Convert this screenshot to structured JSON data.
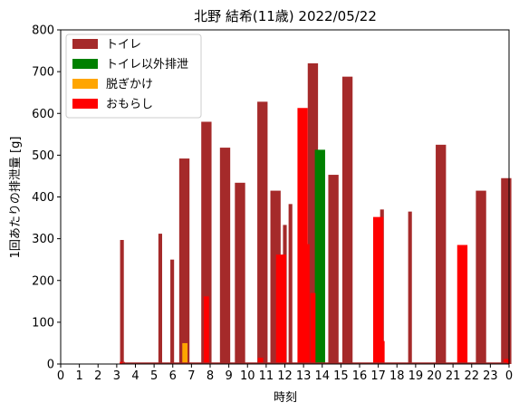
{
  "chart_data": {
    "type": "bar",
    "title": "北野 結希(11歳) 2022/05/22",
    "xlabel": "時刻",
    "ylabel": "1回あたりの排泄量 [g]",
    "xlim": [
      0,
      24
    ],
    "ylim": [
      0,
      800
    ],
    "yticks": [
      0,
      100,
      200,
      300,
      400,
      500,
      600,
      700,
      800
    ],
    "xtick_labels": [
      "0",
      "1",
      "2",
      "3",
      "4",
      "5",
      "6",
      "7",
      "8",
      "9",
      "10",
      "11",
      "12",
      "13",
      "14",
      "15",
      "16",
      "17",
      "18",
      "19",
      "20",
      "21",
      "22",
      "23",
      "0"
    ],
    "grid": false,
    "legend_position": "top-left",
    "series": [
      {
        "name": "トイレ",
        "color": "#a52a2a",
        "points": [
          {
            "x": 3.28,
            "y": 297
          },
          {
            "x": 5.33,
            "y": 312
          },
          {
            "x": 5.97,
            "y": 250
          },
          {
            "x": 6.62,
            "y": 492
          },
          {
            "x": 7.8,
            "y": 580
          },
          {
            "x": 8.8,
            "y": 518
          },
          {
            "x": 9.6,
            "y": 434
          },
          {
            "x": 10.8,
            "y": 628
          },
          {
            "x": 11.5,
            "y": 415
          },
          {
            "x": 12.0,
            "y": 333
          },
          {
            "x": 12.3,
            "y": 383
          },
          {
            "x": 13.5,
            "y": 720
          },
          {
            "x": 14.6,
            "y": 453
          },
          {
            "x": 15.35,
            "y": 688
          },
          {
            "x": 17.2,
            "y": 370
          },
          {
            "x": 18.7,
            "y": 365
          },
          {
            "x": 20.35,
            "y": 525
          },
          {
            "x": 22.5,
            "y": 415
          },
          {
            "x": 23.85,
            "y": 445
          }
        ]
      },
      {
        "name": "トイレ以外排泄",
        "color": "#008000",
        "points": [
          {
            "x": 13.88,
            "y": 513
          }
        ]
      },
      {
        "name": "脱ぎかけ",
        "color": "#ffa500",
        "points": [
          {
            "x": 6.65,
            "y": 50
          }
        ]
      },
      {
        "name": "おもらし",
        "color": "#ff0000",
        "points": [
          {
            "x": 3.3,
            "y": 5
          },
          {
            "x": 7.8,
            "y": 162
          },
          {
            "x": 10.7,
            "y": 15
          },
          {
            "x": 11.8,
            "y": 262
          },
          {
            "x": 12.95,
            "y": 613
          },
          {
            "x": 13.05,
            "y": 287
          },
          {
            "x": 13.5,
            "y": 170
          },
          {
            "x": 17.0,
            "y": 352
          },
          {
            "x": 17.2,
            "y": 55
          },
          {
            "x": 21.5,
            "y": 285
          },
          {
            "x": 23.85,
            "y": 12
          }
        ]
      }
    ]
  }
}
